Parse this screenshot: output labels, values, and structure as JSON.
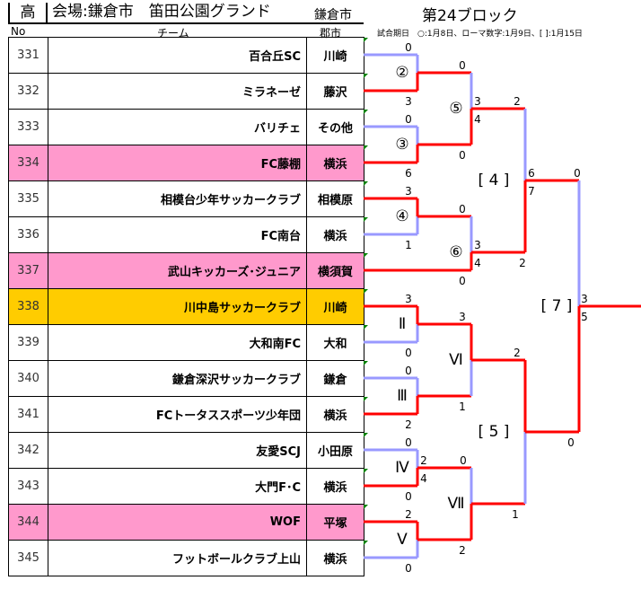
{
  "header": {
    "grade": "高",
    "venue": "会場:鎌倉市　笛田公園グランド",
    "venue_city": "鎌倉市",
    "block": "第24ブロック",
    "col_no": "No",
    "col_team": "チーム",
    "col_city": "郡市",
    "note": "試合期日　○:1月8日、ローマ数字:1月9日、[ ]:1月15日"
  },
  "teams": [
    {
      "no": "331",
      "name": "百合丘SC",
      "city": "川崎",
      "highlight": ""
    },
    {
      "no": "332",
      "name": "ミラネーゼ",
      "city": "藤沢",
      "highlight": ""
    },
    {
      "no": "333",
      "name": "バリチェ",
      "city": "その他",
      "highlight": ""
    },
    {
      "no": "334",
      "name": "FC藤棚",
      "city": "横浜",
      "highlight": "#ff99cc"
    },
    {
      "no": "335",
      "name": "相模台少年サッカークラブ",
      "city": "相模原",
      "highlight": ""
    },
    {
      "no": "336",
      "name": "FC南台",
      "city": "横浜",
      "highlight": ""
    },
    {
      "no": "337",
      "name": "武山キッカーズ･ジュニア",
      "city": "横須賀",
      "highlight": "#ff99cc"
    },
    {
      "no": "338",
      "name": "川中島サッカークラブ",
      "city": "川崎",
      "highlight": "#ffcc00"
    },
    {
      "no": "339",
      "name": "大和南FC",
      "city": "大和",
      "highlight": ""
    },
    {
      "no": "340",
      "name": "鎌倉深沢サッカークラブ",
      "city": "鎌倉",
      "highlight": ""
    },
    {
      "no": "341",
      "name": "FCトータススポーツ少年団",
      "city": "横浜",
      "highlight": ""
    },
    {
      "no": "342",
      "name": "友愛SCJ",
      "city": "小田原",
      "highlight": ""
    },
    {
      "no": "343",
      "name": "大門F･C",
      "city": "横浜",
      "highlight": ""
    },
    {
      "no": "344",
      "name": "WOF",
      "city": "平塚",
      "highlight": "#ff99cc"
    },
    {
      "no": "345",
      "name": "フットボールクラブ上山",
      "city": "横浜",
      "highlight": ""
    }
  ],
  "bracket": {
    "colors": {
      "winner": "#ff0000",
      "loser": "#9999ff"
    },
    "match_labels": [
      "②",
      "③",
      "④",
      "⑤",
      "⑥",
      "[ 4 ]",
      "Ⅱ",
      "Ⅲ",
      "Ⅵ",
      "Ⅳ",
      "Ⅴ",
      "Ⅶ",
      "[ 5 ]",
      "[ 7 ]"
    ],
    "scores": [
      "0",
      "3",
      "0",
      "6",
      "3",
      "1",
      "0",
      "3",
      "4",
      "0",
      "0",
      "3",
      "4",
      "0",
      "2",
      "6",
      "7",
      "2",
      "0",
      "3",
      "5",
      "3",
      "0",
      "0",
      "2",
      "0",
      "0",
      "2",
      "0",
      "3",
      "1",
      "2",
      "4",
      "0",
      "2",
      "2",
      "0",
      "1"
    ]
  }
}
